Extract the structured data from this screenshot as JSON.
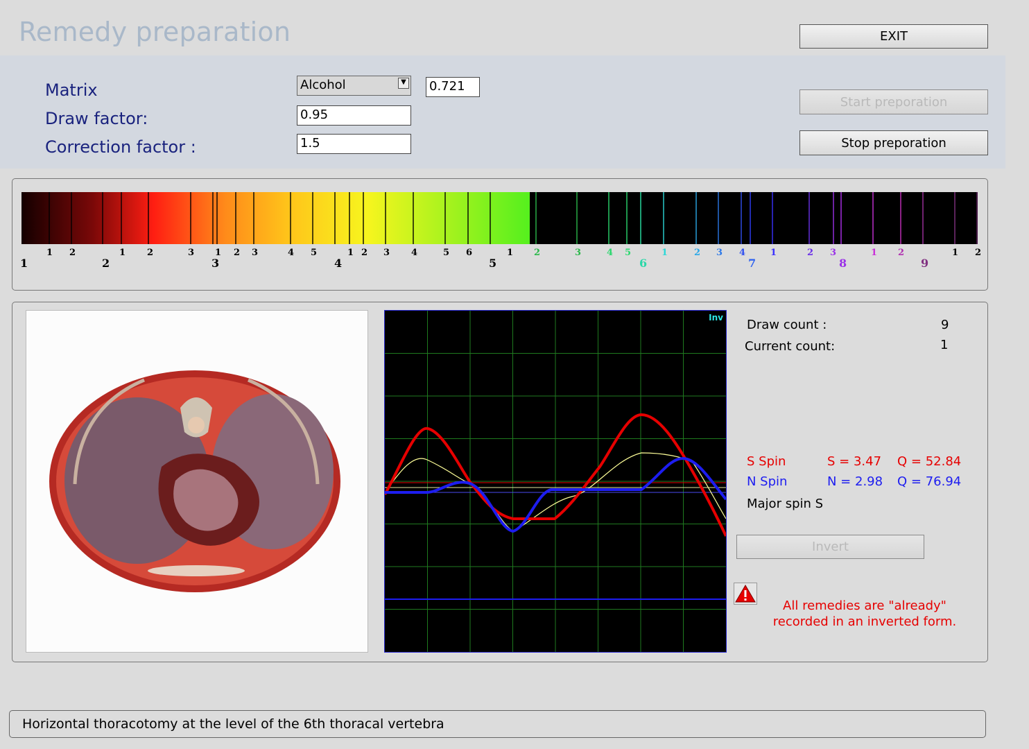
{
  "header": {
    "title": "Remedy preparation",
    "exit_label": "EXIT"
  },
  "form": {
    "matrix_label": "Matrix",
    "matrix_value": "Alcohol",
    "matrix_number": "0.721",
    "draw_factor_label": "Draw factor:",
    "draw_factor_value": "0.95",
    "correction_factor_label": "Correction factor :",
    "correction_factor_value": "1.5"
  },
  "actions": {
    "start_label": "Start preporation",
    "stop_label": "Stop preporation"
  },
  "spectrum": {
    "small_ticks": [
      "1",
      "2",
      "1",
      "2",
      "3",
      "1",
      "2",
      "3",
      "4",
      "5",
      "1",
      "2",
      "3",
      "4",
      "5",
      "6",
      "1",
      "2",
      "3",
      "4",
      "5",
      "1",
      "2",
      "3",
      "4",
      "1",
      "2",
      "3",
      "1",
      "2",
      "1",
      "2"
    ],
    "big_ticks": [
      "1",
      "2",
      "3",
      "4",
      "5",
      "6",
      "7",
      "8",
      "9"
    ]
  },
  "stats": {
    "draw_count_label": "Draw count :",
    "draw_count_value": "9",
    "current_count_label": "Current count:",
    "current_count_value": "1"
  },
  "spin": {
    "s_label": "S Spin",
    "s_value": "S = 3.47",
    "s_q": "Q = 52.84",
    "n_label": "N Spin",
    "n_value": "N = 2.98",
    "n_q": "Q = 76.94",
    "major": "Major spin S"
  },
  "graph": {
    "inv_label": "Inv"
  },
  "invert_label": "Invert",
  "warning": {
    "line1": "All remedies are \"already\"",
    "line2": "recorded in an inverted form."
  },
  "status_text": "Horizontal thoracotomy at the level of the 6th thoracal vertebra",
  "colors": {
    "s_spin": "#e60000",
    "n_spin": "#1d1df0",
    "title": "#a9b8c9",
    "label": "#1a237e"
  }
}
